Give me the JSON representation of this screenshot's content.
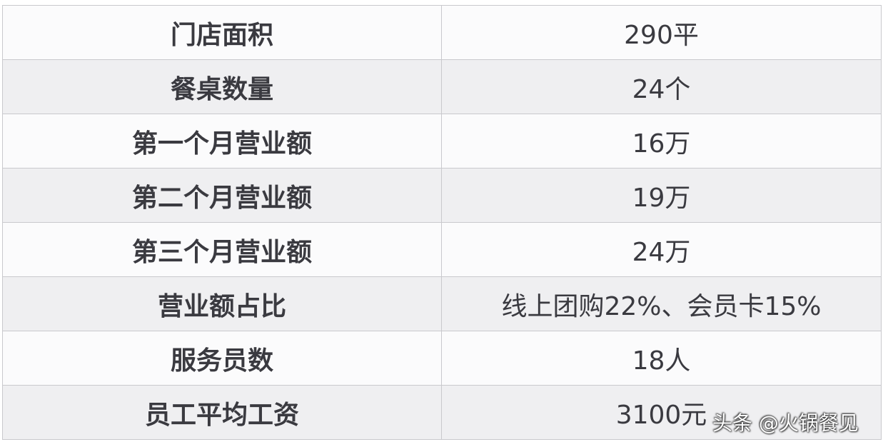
{
  "table": {
    "rows": [
      {
        "label": "门店面积",
        "value": "290平"
      },
      {
        "label": "餐桌数量",
        "value": "24个"
      },
      {
        "label": "第一个月营业额",
        "value": "16万"
      },
      {
        "label": "第二个月营业额",
        "value": "19万"
      },
      {
        "label": "第三个月营业额",
        "value": "24万"
      },
      {
        "label": "营业额占比",
        "value": "线上团购22%、会员卡15%"
      },
      {
        "label": "服务员数",
        "value": "18人"
      },
      {
        "label": "员工平均工资",
        "value": "3100元"
      }
    ]
  },
  "watermark": "头条 @火锅餐见"
}
